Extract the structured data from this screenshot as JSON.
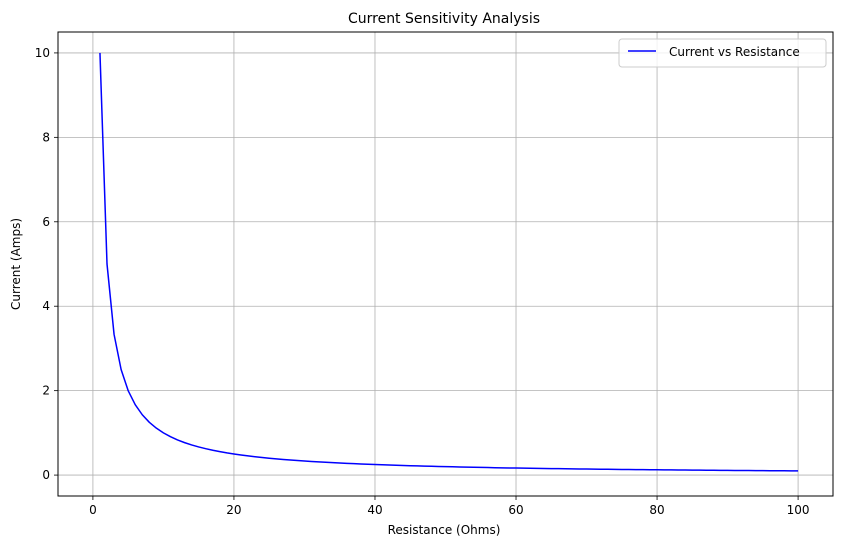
{
  "chart_data": {
    "type": "line",
    "title": "Current Sensitivity Analysis",
    "xlabel": "Resistance (Ohms)",
    "ylabel": "Current (Amps)",
    "xlim": [
      -4.95,
      104.95
    ],
    "ylim": [
      -0.4955,
      10.4955
    ],
    "xticks": [
      0,
      20,
      40,
      60,
      80,
      100
    ],
    "yticks": [
      0,
      2,
      4,
      6,
      8,
      10
    ],
    "grid": true,
    "legend_position": "top-right",
    "series": [
      {
        "name": "Current vs Resistance",
        "color": "#0000ff",
        "x": [
          1,
          2,
          3,
          4,
          5,
          6,
          7,
          8,
          9,
          10,
          11,
          12,
          13,
          14,
          15,
          16,
          17,
          18,
          19,
          20,
          21,
          22,
          23,
          24,
          25,
          26,
          27,
          28,
          29,
          30,
          31,
          32,
          33,
          34,
          35,
          36,
          37,
          38,
          39,
          40,
          41,
          42,
          43,
          44,
          45,
          46,
          47,
          48,
          49,
          50,
          51,
          52,
          53,
          54,
          55,
          56,
          57,
          58,
          59,
          60,
          61,
          62,
          63,
          64,
          65,
          66,
          67,
          68,
          69,
          70,
          71,
          72,
          73,
          74,
          75,
          76,
          77,
          78,
          79,
          80,
          81,
          82,
          83,
          84,
          85,
          86,
          87,
          88,
          89,
          90,
          91,
          92,
          93,
          94,
          95,
          96,
          97,
          98,
          99,
          100
        ],
        "y": [
          10.0,
          5.0,
          3.333,
          2.5,
          2.0,
          1.667,
          1.429,
          1.25,
          1.111,
          1.0,
          0.909,
          0.833,
          0.769,
          0.714,
          0.667,
          0.625,
          0.588,
          0.556,
          0.526,
          0.5,
          0.476,
          0.455,
          0.435,
          0.417,
          0.4,
          0.385,
          0.37,
          0.357,
          0.345,
          0.333,
          0.323,
          0.313,
          0.303,
          0.294,
          0.286,
          0.278,
          0.27,
          0.263,
          0.256,
          0.25,
          0.244,
          0.238,
          0.233,
          0.227,
          0.222,
          0.217,
          0.213,
          0.208,
          0.204,
          0.2,
          0.196,
          0.192,
          0.189,
          0.185,
          0.182,
          0.179,
          0.175,
          0.172,
          0.169,
          0.167,
          0.164,
          0.161,
          0.159,
          0.156,
          0.154,
          0.152,
          0.149,
          0.147,
          0.145,
          0.143,
          0.141,
          0.139,
          0.137,
          0.135,
          0.133,
          0.132,
          0.13,
          0.128,
          0.127,
          0.125,
          0.123,
          0.122,
          0.12,
          0.119,
          0.118,
          0.116,
          0.115,
          0.114,
          0.112,
          0.111,
          0.11,
          0.109,
          0.108,
          0.106,
          0.105,
          0.104,
          0.103,
          0.102,
          0.101,
          0.1
        ]
      }
    ]
  }
}
